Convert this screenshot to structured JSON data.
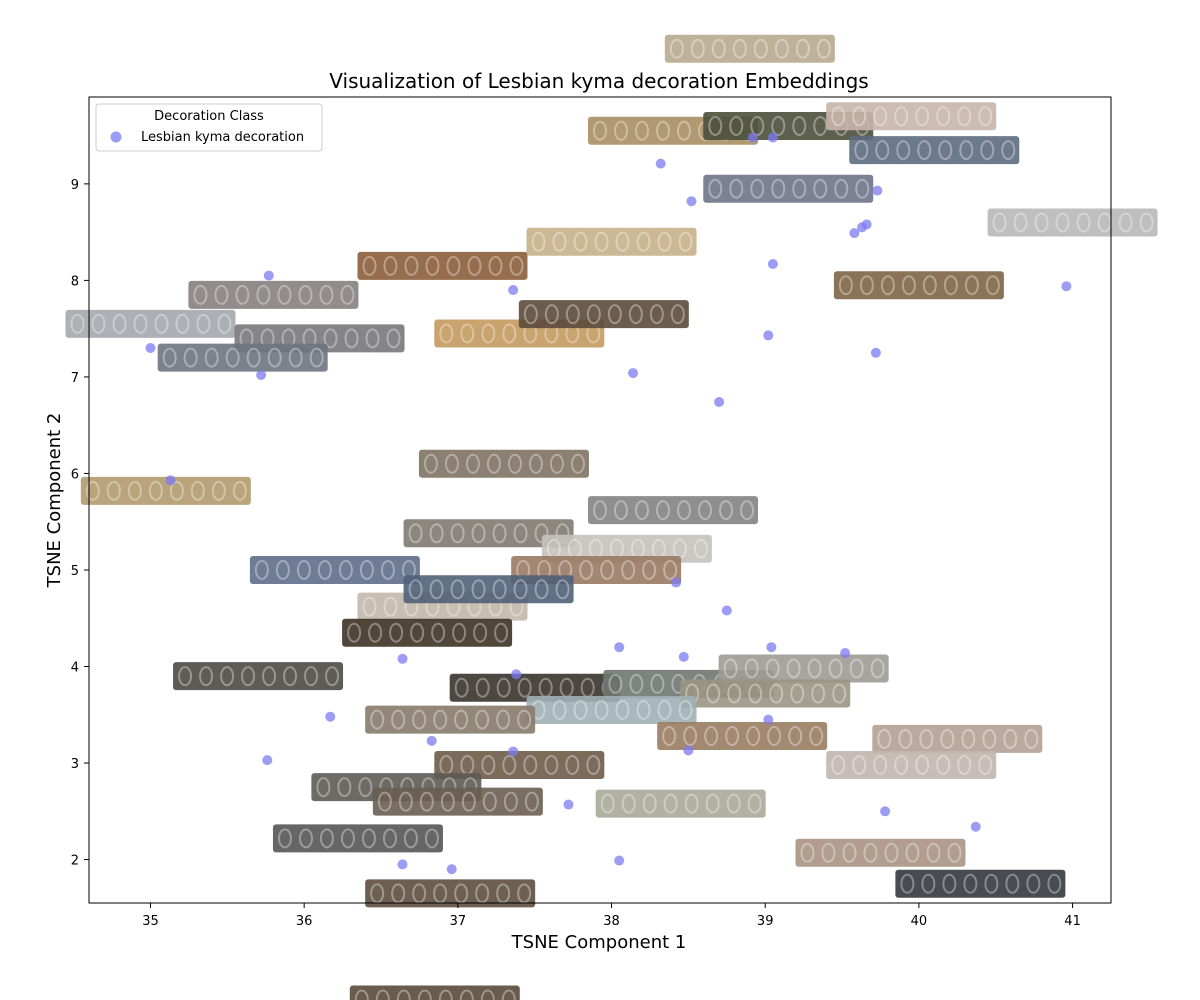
{
  "chart_data": {
    "type": "scatter",
    "title": "Visualization of Lesbian kyma decoration Embeddings",
    "xlabel": "TSNE Component 1",
    "ylabel": "TSNE Component 2",
    "xlim": [
      34.6,
      41.25
    ],
    "ylim": [
      1.55,
      9.9
    ],
    "xticks": [
      35,
      36,
      37,
      38,
      39,
      40,
      41
    ],
    "yticks": [
      2,
      3,
      4,
      5,
      6,
      7,
      8,
      9
    ],
    "grid": false,
    "legend": {
      "title": "Decoration Class",
      "placement": "top-left",
      "entries": [
        "Lesbian kyma decoration"
      ]
    },
    "marker_color": "#7b7bf2",
    "series": [
      {
        "name": "Lesbian kyma decoration",
        "points": [
          [
            35.77,
            8.05
          ],
          [
            35.0,
            7.3
          ],
          [
            35.72,
            7.02
          ],
          [
            35.13,
            5.93
          ],
          [
            36.17,
            3.48
          ],
          [
            35.76,
            3.03
          ],
          [
            36.64,
            4.08
          ],
          [
            36.83,
            3.23
          ],
          [
            36.64,
            1.95
          ],
          [
            36.96,
            1.9
          ],
          [
            37.36,
            7.9
          ],
          [
            37.38,
            3.92
          ],
          [
            37.36,
            3.12
          ],
          [
            37.72,
            2.57
          ],
          [
            38.05,
            4.2
          ],
          [
            38.05,
            1.99
          ],
          [
            38.14,
            7.04
          ],
          [
            38.32,
            9.21
          ],
          [
            38.42,
            4.87
          ],
          [
            38.47,
            4.1
          ],
          [
            38.5,
            3.13
          ],
          [
            38.52,
            8.82
          ],
          [
            38.7,
            6.74
          ],
          [
            38.75,
            4.58
          ],
          [
            38.92,
            9.48
          ],
          [
            39.02,
            7.43
          ],
          [
            39.04,
            4.2
          ],
          [
            39.05,
            9.48
          ],
          [
            39.05,
            8.17
          ],
          [
            39.02,
            3.45
          ],
          [
            39.52,
            4.14
          ],
          [
            39.58,
            8.49
          ],
          [
            39.63,
            8.55
          ],
          [
            39.66,
            8.58
          ],
          [
            39.72,
            7.25
          ],
          [
            39.73,
            8.93
          ],
          [
            39.78,
            2.5
          ],
          [
            40.37,
            2.34
          ],
          [
            40.96,
            7.94
          ]
        ]
      }
    ],
    "thumbnails": [
      {
        "x": 38.9,
        "y": 10.4,
        "color": "#b8aa90"
      },
      {
        "x": 38.4,
        "y": 9.55,
        "color": "#a88f62"
      },
      {
        "x": 39.15,
        "y": 9.6,
        "color": "#4a4f3a"
      },
      {
        "x": 39.95,
        "y": 9.7,
        "color": "#c8b5a8"
      },
      {
        "x": 40.1,
        "y": 9.35,
        "color": "#5d6a80"
      },
      {
        "x": 39.15,
        "y": 8.95,
        "color": "#6e7488"
      },
      {
        "x": 38.0,
        "y": 8.4,
        "color": "#c6b08a"
      },
      {
        "x": 36.9,
        "y": 8.15,
        "color": "#8b5e3a"
      },
      {
        "x": 35.8,
        "y": 7.85,
        "color": "#868080"
      },
      {
        "x": 35.0,
        "y": 7.55,
        "color": "#a4a9ad"
      },
      {
        "x": 36.1,
        "y": 7.4,
        "color": "#78787c"
      },
      {
        "x": 35.6,
        "y": 7.2,
        "color": "#6c7480"
      },
      {
        "x": 37.4,
        "y": 7.45,
        "color": "#c39a5e"
      },
      {
        "x": 37.95,
        "y": 7.65,
        "color": "#5b4a3a"
      },
      {
        "x": 40.0,
        "y": 7.95,
        "color": "#7e6446"
      },
      {
        "x": 41.0,
        "y": 8.6,
        "color": "#b8b8b8"
      },
      {
        "x": 35.1,
        "y": 5.82,
        "color": "#b29a6e"
      },
      {
        "x": 37.3,
        "y": 6.1,
        "color": "#7e7262"
      },
      {
        "x": 38.4,
        "y": 5.62,
        "color": "#838383"
      },
      {
        "x": 37.2,
        "y": 5.38,
        "color": "#7f7a70"
      },
      {
        "x": 38.1,
        "y": 5.22,
        "color": "#c5c2bd"
      },
      {
        "x": 36.2,
        "y": 5.0,
        "color": "#5e6f8a"
      },
      {
        "x": 37.9,
        "y": 5.0,
        "color": "#9a7a64"
      },
      {
        "x": 36.9,
        "y": 4.62,
        "color": "#c2b7a8"
      },
      {
        "x": 37.2,
        "y": 4.8,
        "color": "#4f6078"
      },
      {
        "x": 36.8,
        "y": 4.35,
        "color": "#3d3225"
      },
      {
        "x": 35.7,
        "y": 3.9,
        "color": "#4d4a42"
      },
      {
        "x": 37.5,
        "y": 3.78,
        "color": "#3a332c"
      },
      {
        "x": 38.5,
        "y": 3.82,
        "color": "#6f7670"
      },
      {
        "x": 39.25,
        "y": 3.98,
        "color": "#9e9b95"
      },
      {
        "x": 39.0,
        "y": 3.72,
        "color": "#9a9582"
      },
      {
        "x": 38.0,
        "y": 3.55,
        "color": "#9fb0b5"
      },
      {
        "x": 36.95,
        "y": 3.45,
        "color": "#877a6a"
      },
      {
        "x": 38.85,
        "y": 3.28,
        "color": "#9a7c62"
      },
      {
        "x": 40.25,
        "y": 3.25,
        "color": "#b5a092"
      },
      {
        "x": 37.4,
        "y": 2.98,
        "color": "#6e5b48"
      },
      {
        "x": 39.95,
        "y": 2.98,
        "color": "#c0b7ae"
      },
      {
        "x": 36.6,
        "y": 2.75,
        "color": "#5e5a55"
      },
      {
        "x": 38.45,
        "y": 2.58,
        "color": "#a8a89a"
      },
      {
        "x": 37.0,
        "y": 2.6,
        "color": "#6a5e50"
      },
      {
        "x": 36.35,
        "y": 2.22,
        "color": "#555555"
      },
      {
        "x": 39.75,
        "y": 2.07,
        "color": "#a89382"
      },
      {
        "x": 40.4,
        "y": 1.75,
        "color": "#34373c"
      },
      {
        "x": 36.95,
        "y": 1.65,
        "color": "#5d4f3e"
      },
      {
        "x": 36.85,
        "y": 0.55,
        "color": "#5a4a3a"
      }
    ]
  }
}
